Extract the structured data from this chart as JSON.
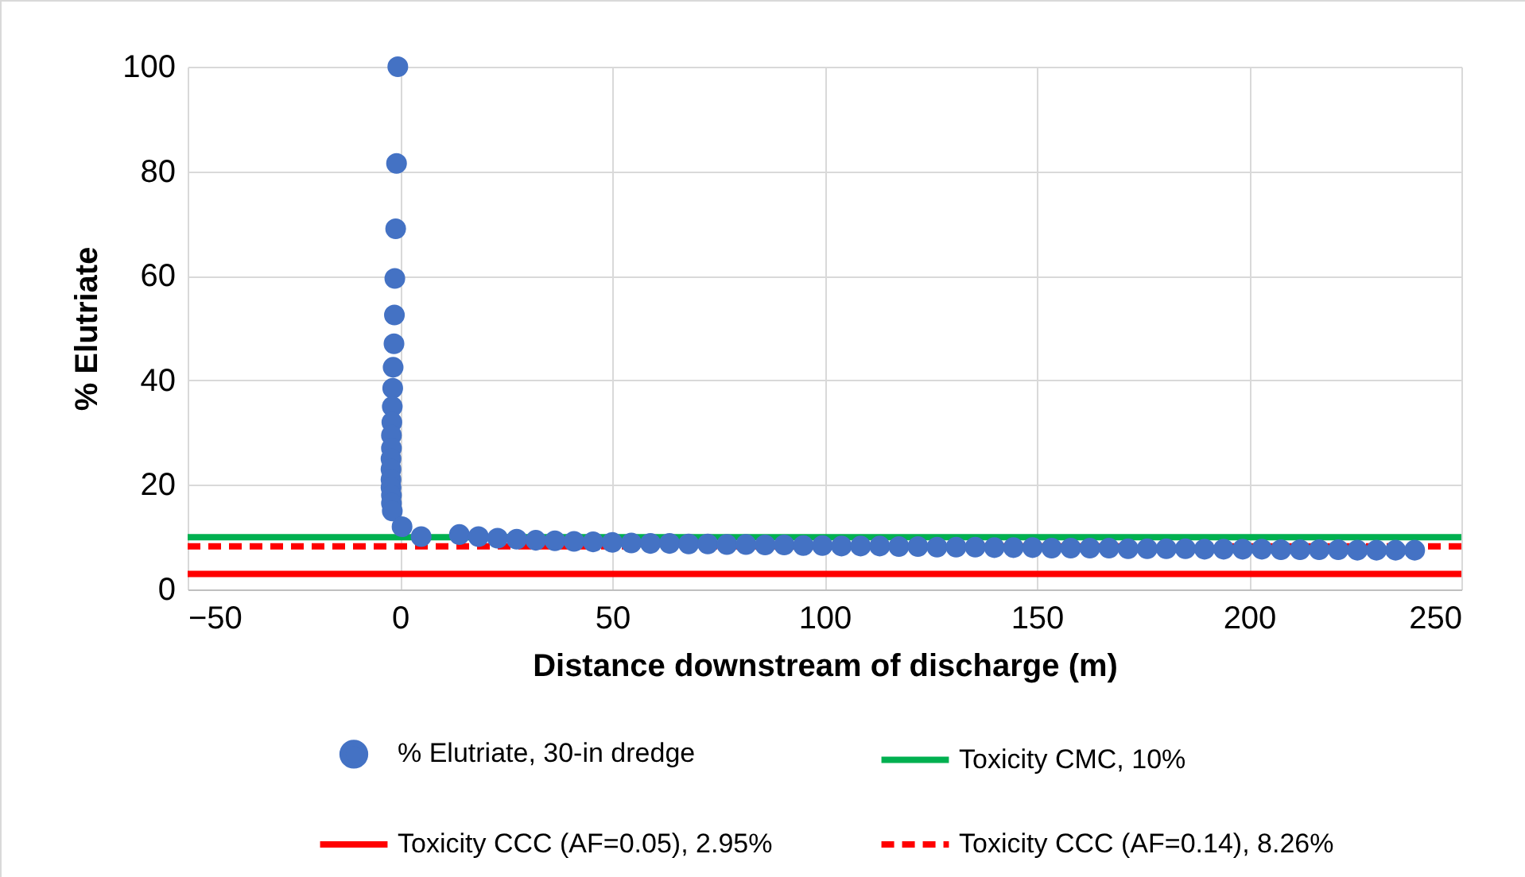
{
  "chart_data": {
    "type": "scatter",
    "xlabel": "Distance downstream of discharge (m)",
    "ylabel": "% Elutriate",
    "xlim": [
      -50,
      250
    ],
    "xticks": [
      -50,
      0,
      50,
      100,
      150,
      200,
      250
    ],
    "ylim": [
      0,
      100
    ],
    "yticks": [
      0,
      20,
      40,
      60,
      80,
      100
    ],
    "grid": true,
    "legend": "bottom",
    "series": [
      {
        "name": "% Elutriate, 30-in dredge",
        "marker": "circle",
        "color": "#4472c4",
        "x": [
          -0.5,
          -0.8,
          -1,
          -1.2,
          -1.3,
          -1.4,
          -1.6,
          -1.7,
          -1.8,
          -1.9,
          -2,
          -2,
          -2.1,
          -2.1,
          -2.1,
          -2.1,
          -2,
          -2,
          -1.8,
          0.5,
          5,
          14,
          18.5,
          23,
          27.5,
          32,
          36.5,
          41,
          45.5,
          50,
          54.5,
          59,
          63.5,
          68,
          72.5,
          77,
          81.5,
          86,
          90.5,
          95,
          99.5,
          104,
          108.5,
          113,
          117.5,
          122,
          126.5,
          131,
          135.5,
          140,
          144.5,
          149,
          153.5,
          158,
          162.5,
          167,
          171.5,
          176,
          180.5,
          185,
          189.5,
          194,
          198.5,
          203,
          207.5,
          212,
          216.5,
          221,
          225.5,
          230,
          234.5,
          239
        ],
        "values": [
          100,
          81.5,
          69,
          59.5,
          52.5,
          47,
          42.5,
          38.5,
          35,
          32,
          29.5,
          27,
          25,
          23,
          21,
          19.5,
          18,
          16.5,
          15,
          12,
          10.1,
          10.5,
          10.1,
          9.8,
          9.6,
          9.4,
          9.3,
          9.2,
          9.1,
          9,
          8.9,
          8.8,
          8.8,
          8.7,
          8.7,
          8.6,
          8.6,
          8.5,
          8.5,
          8.4,
          8.4,
          8.3,
          8.3,
          8.3,
          8.2,
          8.2,
          8.1,
          8.1,
          8.1,
          8,
          8,
          8,
          7.9,
          7.9,
          7.9,
          7.9,
          7.8,
          7.8,
          7.8,
          7.8,
          7.7,
          7.7,
          7.7,
          7.7,
          7.6,
          7.6,
          7.6,
          7.6,
          7.5,
          7.5,
          7.5,
          7.5
        ]
      },
      {
        "name": "Toxicity CMC, 10%",
        "type": "line",
        "line_style": "solid",
        "color": "#00b050",
        "x": [
          -50,
          250
        ],
        "values": [
          10,
          10
        ]
      },
      {
        "name": "Toxicity CCC (AF=0.05), 2.95%",
        "type": "line",
        "line_style": "solid",
        "color": "#ff0000",
        "x": [
          -50,
          250
        ],
        "values": [
          2.95,
          2.95
        ]
      },
      {
        "name": "Toxicity CCC (AF=0.14), 8.26%",
        "type": "line",
        "line_style": "dashed",
        "color": "#ff0000",
        "x": [
          -50,
          250
        ],
        "values": [
          8.26,
          8.26
        ]
      }
    ]
  }
}
